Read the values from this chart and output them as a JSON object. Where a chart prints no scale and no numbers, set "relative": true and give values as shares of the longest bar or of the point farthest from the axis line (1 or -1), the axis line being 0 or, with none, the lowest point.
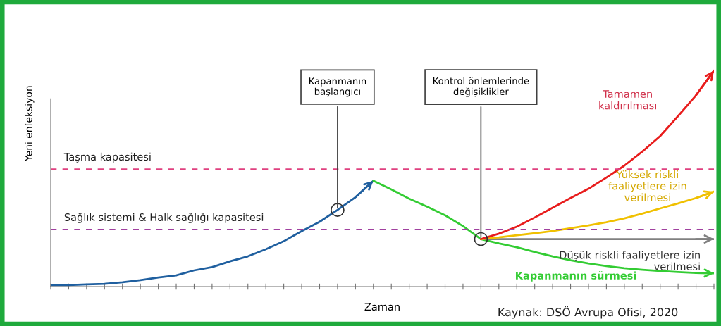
{
  "chart_data": {
    "type": "line",
    "relative": true,
    "xlabel": "Zaman",
    "ylabel": "Yeni enfeksiyon",
    "grid": false,
    "categories": [
      null,
      null,
      null,
      null,
      null,
      null,
      null,
      null,
      null,
      null,
      null,
      null,
      null,
      null,
      null,
      null,
      null,
      null,
      null,
      null,
      null,
      null,
      null,
      null,
      null,
      null,
      null,
      null,
      null,
      null,
      null,
      null,
      null,
      null,
      null,
      null,
      null,
      null
    ],
    "series": [
      {
        "color": "#1f5f9f",
        "values": [
          0.007,
          0.007,
          0.01,
          0.013,
          0.02,
          0.03,
          0.042,
          0.052,
          0.075,
          0.09,
          0.117,
          0.14,
          0.173,
          0.21,
          0.257,
          0.3,
          0.355,
          0.414,
          0.49,
          null,
          null,
          null,
          null,
          null,
          null,
          null,
          null,
          null,
          null,
          null,
          null,
          null,
          null,
          null,
          null,
          null,
          null,
          null
        ]
      },
      {
        "name": "Kapanmanın sürmesi",
        "color": "#33cc33",
        "values": [
          null,
          null,
          null,
          null,
          null,
          null,
          null,
          null,
          null,
          null,
          null,
          null,
          null,
          null,
          null,
          null,
          null,
          null,
          0.49,
          0.45,
          0.407,
          0.37,
          0.33,
          0.28,
          0.22,
          0.2,
          0.182,
          0.16,
          0.14,
          0.122,
          0.107,
          0.095,
          0.085,
          0.078,
          0.072,
          0.067,
          0.063,
          0.062
        ]
      },
      {
        "name": "Düşük riskli faaliyetlere izin\nverilmesi",
        "color": "#808080",
        "values": [
          null,
          null,
          null,
          null,
          null,
          null,
          null,
          null,
          null,
          null,
          null,
          null,
          null,
          null,
          null,
          null,
          null,
          null,
          null,
          null,
          null,
          null,
          null,
          null,
          0.22,
          0.22,
          0.22,
          0.22,
          0.22,
          0.22,
          0.22,
          0.22,
          0.22,
          0.22,
          0.22,
          0.22,
          0.22,
          0.22
        ]
      },
      {
        "name": "Yüksek riskli\nfaaliyetlere izin\nverilmesi",
        "color": "#f0c000",
        "values": [
          null,
          null,
          null,
          null,
          null,
          null,
          null,
          null,
          null,
          null,
          null,
          null,
          null,
          null,
          null,
          null,
          null,
          null,
          null,
          null,
          null,
          null,
          null,
          null,
          0.22,
          0.228,
          0.238,
          0.247,
          0.257,
          0.27,
          0.283,
          0.298,
          0.316,
          0.338,
          0.362,
          0.385,
          0.41,
          0.44
        ]
      },
      {
        "name": "Tamamen\nkaldırılması",
        "color": "#e81c1c",
        "values": [
          null,
          null,
          null,
          null,
          null,
          null,
          null,
          null,
          null,
          null,
          null,
          null,
          null,
          null,
          null,
          null,
          null,
          null,
          null,
          null,
          null,
          null,
          null,
          null,
          0.22,
          0.245,
          0.277,
          0.32,
          0.365,
          0.41,
          0.453,
          0.505,
          0.56,
          0.625,
          0.697,
          0.79,
          0.886,
          1
        ]
      }
    ],
    "ref_lines": [
      {
        "axis": "y",
        "value": 0.544,
        "label": "Taşma kapasitesi",
        "color": "#e0407f",
        "line_style": "dashed"
      },
      {
        "axis": "y",
        "value": 0.264,
        "label": "Sağlık sistemi & Halk sağlığı kapasitesi",
        "color": "#a0409f",
        "line_style": "dashed"
      }
    ],
    "annotations": [
      "Kapanmanın\nbaşlangıcı",
      "Kontrol önlemlerinde\ndeğişiklikler",
      "Kaynak: DSÖ Avrupa Ofisi, 2020"
    ]
  }
}
